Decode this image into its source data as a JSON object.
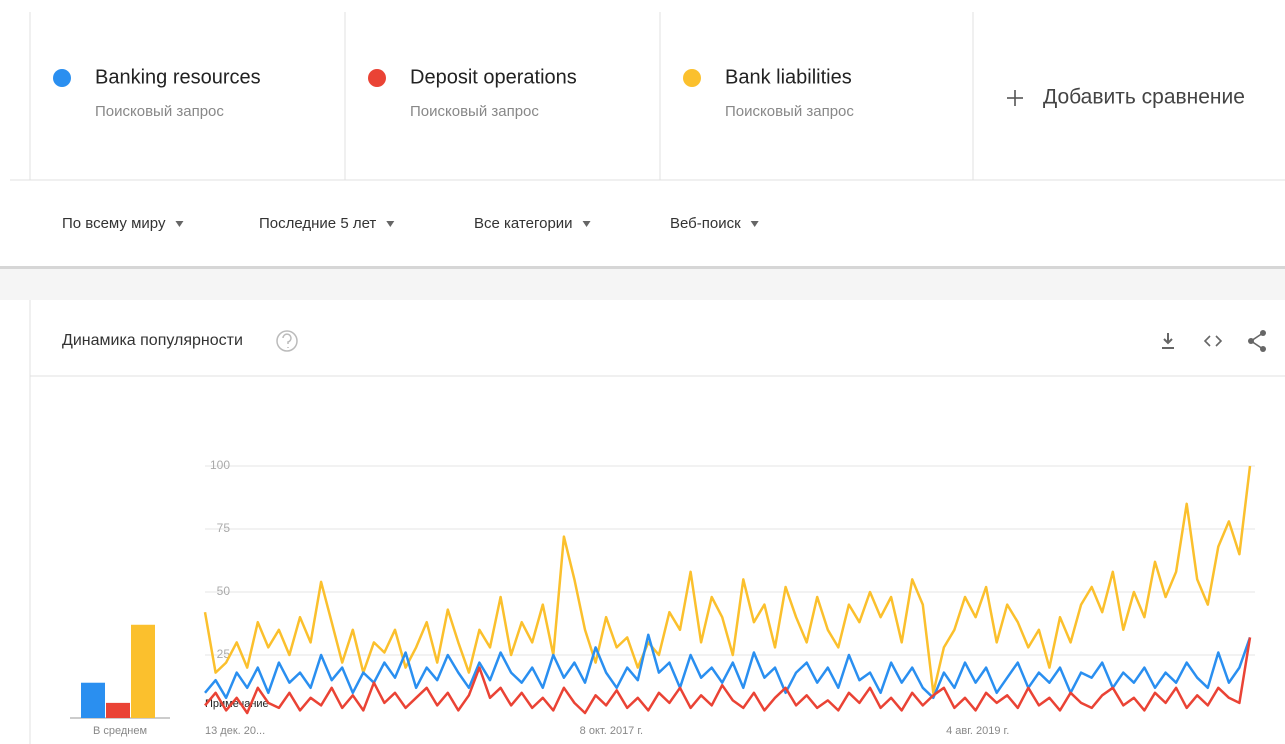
{
  "terms": [
    {
      "subtitle": "Поисковый запрос"
    },
    {
      "subtitle": "Поисковый запрос"
    },
    {
      "subtitle": "Поисковый запрос"
    }
  ],
  "add_comparison": "Добавить сравнение",
  "filters": [
    "По всему миру",
    "Последние 5 лет",
    "Все категории",
    "Веб-поиск"
  ],
  "chart_data": {
    "type": "line",
    "title": "Динамика популярности",
    "average_label": "В среднем",
    "averages": [
      14,
      6,
      37
    ],
    "note": "Примечание",
    "xlim": [
      0,
      99
    ],
    "xticks": [
      {
        "value": 0,
        "label": "13 дек. 20..."
      },
      {
        "value": 38.5,
        "label": "8 окт. 2017 г."
      },
      {
        "value": 73.2,
        "label": "4 авг. 2019 г."
      }
    ],
    "ylim": [
      0,
      100
    ],
    "yticks": [
      25,
      50,
      75,
      100
    ],
    "grid": true,
    "series": [
      {
        "name": "Banking resources",
        "color": "#2a8ff0",
        "values": [
          10,
          15,
          8,
          18,
          12,
          20,
          10,
          22,
          14,
          18,
          12,
          25,
          15,
          20,
          10,
          18,
          14,
          22,
          16,
          26,
          12,
          20,
          15,
          25,
          18,
          12,
          22,
          15,
          26,
          18,
          14,
          20,
          12,
          25,
          16,
          22,
          14,
          28,
          18,
          12,
          20,
          15,
          33,
          18,
          22,
          12,
          25,
          16,
          20,
          14,
          22,
          12,
          26,
          16,
          20,
          10,
          18,
          22,
          14,
          20,
          12,
          25,
          15,
          18,
          10,
          22,
          14,
          20,
          12,
          8,
          18,
          12,
          22,
          14,
          20,
          10,
          16,
          22,
          12,
          18,
          14,
          20,
          10,
          18,
          16,
          22,
          12,
          18,
          14,
          20,
          12,
          18,
          14,
          22,
          16,
          12,
          26,
          14,
          20,
          32
        ]
      },
      {
        "name": "Deposit operations",
        "color": "#ea4335",
        "values": [
          5,
          10,
          3,
          8,
          2,
          12,
          6,
          4,
          10,
          3,
          8,
          5,
          12,
          4,
          9,
          3,
          14,
          6,
          10,
          4,
          8,
          12,
          5,
          10,
          3,
          9,
          20,
          8,
          12,
          5,
          10,
          4,
          8,
          3,
          12,
          6,
          2,
          9,
          5,
          11,
          4,
          8,
          3,
          10,
          6,
          12,
          4,
          9,
          5,
          13,
          7,
          4,
          10,
          3,
          8,
          12,
          5,
          9,
          4,
          7,
          3,
          10,
          6,
          12,
          4,
          8,
          3,
          10,
          5,
          9,
          12,
          4,
          8,
          3,
          10,
          6,
          9,
          4,
          12,
          5,
          8,
          3,
          10,
          6,
          4,
          9,
          12,
          5,
          8,
          3,
          10,
          6,
          12,
          4,
          9,
          5,
          12,
          8,
          6,
          32
        ]
      },
      {
        "name": "Bank liabilities",
        "color": "#fbc02d",
        "values": [
          42,
          18,
          22,
          30,
          20,
          38,
          28,
          35,
          25,
          40,
          30,
          54,
          38,
          22,
          35,
          18,
          30,
          26,
          35,
          20,
          28,
          38,
          22,
          43,
          30,
          18,
          35,
          28,
          48,
          25,
          38,
          30,
          45,
          25,
          72,
          55,
          35,
          22,
          40,
          28,
          32,
          20,
          30,
          25,
          42,
          35,
          58,
          30,
          48,
          40,
          25,
          55,
          38,
          45,
          28,
          52,
          40,
          30,
          48,
          35,
          28,
          45,
          38,
          50,
          40,
          48,
          30,
          55,
          45,
          10,
          28,
          35,
          48,
          40,
          52,
          30,
          45,
          38,
          28,
          35,
          20,
          40,
          30,
          45,
          52,
          42,
          58,
          35,
          50,
          40,
          62,
          48,
          58,
          85,
          55,
          45,
          68,
          78,
          65,
          100
        ]
      }
    ]
  }
}
